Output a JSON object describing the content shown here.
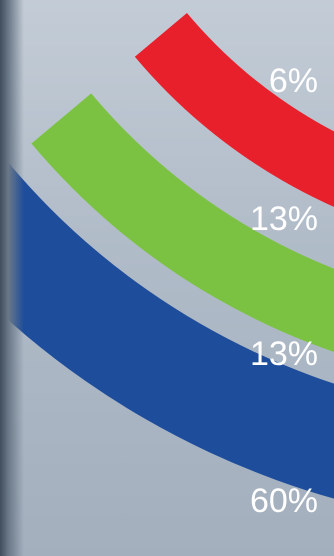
{
  "chart_data": {
    "type": "pie",
    "style": "concentric arc bands (partial view)",
    "title": "",
    "slices": [
      {
        "label": "6%",
        "value": 6,
        "color": "#5bbf8a"
      },
      {
        "label": "13%",
        "value": 13,
        "color": "#e8202c"
      },
      {
        "label": "13%",
        "value": 13,
        "color": "#7cc242"
      },
      {
        "label": "60%",
        "value": 60,
        "color": "#1e4d9b"
      }
    ]
  }
}
